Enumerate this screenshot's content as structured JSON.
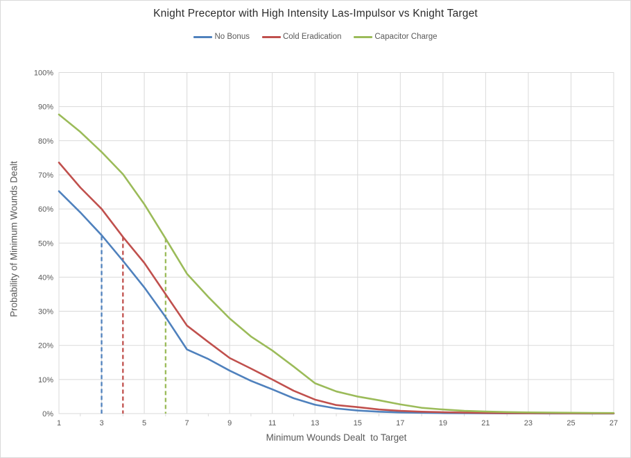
{
  "chart_data": {
    "type": "line",
    "title": "Knight Preceptor with High Intensity Las-Impulsor vs Knight Target",
    "xlabel": "Minimum Wounds Dealt  to Target",
    "ylabel": "Probability of Minimum Wounds Dealt",
    "x": [
      1,
      2,
      3,
      4,
      5,
      6,
      7,
      8,
      9,
      10,
      11,
      12,
      13,
      14,
      15,
      16,
      17,
      18,
      19,
      20,
      21,
      22,
      23,
      24,
      25,
      26,
      27
    ],
    "x_tick_values": [
      1,
      3,
      5,
      7,
      9,
      11,
      13,
      15,
      17,
      19,
      21,
      23,
      25,
      27
    ],
    "y_tick_labels": [
      "0%",
      "10%",
      "20%",
      "30%",
      "40%",
      "50%",
      "60%",
      "70%",
      "80%",
      "90%",
      "100%"
    ],
    "ylim": [
      0,
      100
    ],
    "grid": "horizontal every 10%, vertical at odd x",
    "legend_position": "top",
    "colors": {
      "no_bonus": "#4F81BD",
      "cold_eradication": "#C0504D",
      "capacitor_charge": "#9BBB59",
      "gridline": "#D9D9D9",
      "axis_text": "#595959"
    },
    "series": [
      {
        "name": "No Bonus",
        "color": "#4F81BD",
        "values": [
          65.2,
          59.0,
          52.3,
          44.8,
          37.0,
          28.3,
          18.8,
          16.0,
          12.6,
          9.6,
          7.1,
          4.5,
          2.6,
          1.5,
          0.9,
          0.55,
          0.35,
          0.25,
          0.15,
          0.1,
          0.08,
          0.06,
          0.05,
          0.04,
          0.03,
          0.02,
          0.02
        ]
      },
      {
        "name": "Cold Eradication",
        "color": "#C0504D",
        "values": [
          73.6,
          66.3,
          60.0,
          51.8,
          44.2,
          35.0,
          25.8,
          21.0,
          16.3,
          13.2,
          10.0,
          6.7,
          4.1,
          2.5,
          1.9,
          1.2,
          0.8,
          0.55,
          0.4,
          0.3,
          0.2,
          0.15,
          0.12,
          0.1,
          0.08,
          0.06,
          0.05
        ]
      },
      {
        "name": "Capacitor Charge",
        "color": "#9BBB59",
        "values": [
          87.7,
          82.6,
          76.7,
          70.2,
          61.4,
          51.3,
          41.0,
          34.2,
          27.9,
          22.6,
          18.5,
          13.8,
          8.9,
          6.5,
          5.0,
          3.9,
          2.7,
          1.7,
          1.2,
          0.8,
          0.6,
          0.45,
          0.35,
          0.3,
          0.25,
          0.2,
          0.18
        ]
      }
    ],
    "median_markers": [
      {
        "series": "No Bonus",
        "x": 3,
        "top": 52.0,
        "color": "#4F81BD"
      },
      {
        "series": "Cold Eradication",
        "x": 4,
        "top": 51.8,
        "color": "#C0504D"
      },
      {
        "series": "Capacitor Charge",
        "x": 6,
        "top": 51.4,
        "color": "#9BBB59"
      }
    ]
  }
}
